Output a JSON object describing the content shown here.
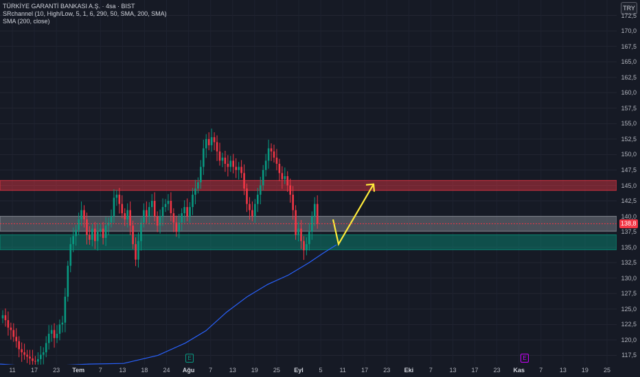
{
  "header": {
    "symbol_line": "TÜRKİYE GARANTİ BANKASI A.Ş. · 4sa · BIST",
    "indicator_1": "SRchannel (10, High/Low, 5, 1, 6, 290, 50, SMA, 200, SMA)",
    "indicator_2": "SMA (200, close)",
    "currency": "TRY",
    "last_price": "138,8"
  },
  "markers": [
    {
      "label": "E",
      "color": "#089981"
    },
    {
      "label": "E",
      "color": "#cc00ff"
    }
  ],
  "colors": {
    "up": "#089981",
    "down": "#f23645",
    "sma": "#2962ff",
    "resistance_zone": "#f23645",
    "support_zone": "#089981",
    "mid_zone": "#9598a1",
    "arrow": "#ffeb3b",
    "background": "#161a25"
  },
  "chart_data": {
    "type": "candlestick",
    "ylim": [
      116,
      175
    ],
    "y_ticks": [
      "117,5",
      "120,0",
      "122,5",
      "125,0",
      "127,5",
      "130,0",
      "132,5",
      "135,0",
      "137,5",
      "140,0",
      "142,5",
      "145,0",
      "147,5",
      "150,0",
      "152,5",
      "155,0",
      "157,5",
      "160,0",
      "162,5",
      "165,0",
      "167,5",
      "170,0",
      "172,5"
    ],
    "x_ticks": [
      "11",
      "17",
      "23",
      "Tem",
      "7",
      "13",
      "18",
      "24",
      "Ağu",
      "7",
      "13",
      "19",
      "25",
      "Eyl",
      "5",
      "11",
      "17",
      "23",
      "Eki",
      "7",
      "13",
      "17",
      "23",
      "Kas",
      "7",
      "13",
      "19",
      "25"
    ],
    "x_major": [
      "Tem",
      "Ağu",
      "Eyl",
      "Eki",
      "Kas"
    ],
    "closes": [
      124.0,
      123.2,
      122.0,
      121.6,
      120.5,
      119.8,
      118.5,
      118.0,
      117.6,
      117.3,
      117.0,
      116.6,
      116.5,
      116.9,
      117.6,
      118.0,
      119.5,
      121.0,
      121.6,
      120.3,
      121.0,
      122.5,
      122.8,
      127.0,
      132.0,
      135.5,
      136.8,
      137.8,
      139.5,
      141.0,
      139.5,
      137.0,
      136.2,
      138.0,
      136.0,
      137.5,
      138.0,
      136.5,
      138.5,
      139.0,
      140.0,
      143.0,
      143.5,
      142.0,
      140.5,
      139.5,
      141.0,
      138.5,
      135.5,
      133.0,
      136.0,
      139.0,
      141.0,
      140.0,
      141.5,
      142.5,
      140.0,
      138.5,
      140.0,
      141.5,
      142.0,
      142.5,
      140.5,
      139.0,
      137.5,
      139.0,
      140.5,
      141.5,
      140.0,
      141.5,
      143.5,
      144.5,
      145.5,
      148.0,
      151.0,
      152.5,
      151.5,
      152.8,
      152.0,
      150.5,
      149.0,
      149.5,
      148.5,
      148.0,
      149.0,
      148.0,
      147.5,
      148.0,
      147.0,
      144.5,
      142.0,
      141.0,
      140.0,
      142.0,
      143.5,
      145.0,
      147.5,
      149.0,
      151.0,
      150.5,
      149.5,
      148.5,
      147.0,
      146.0,
      146.5,
      145.0,
      143.5,
      141.0,
      137.0,
      138.0,
      136.0,
      134.5,
      135.5,
      137.5,
      140.0,
      142.0,
      138.8
    ],
    "sma_200": [
      [
        0,
        116.1
      ],
      [
        40,
        115.8
      ],
      [
        90,
        115.9
      ],
      [
        130,
        116.1
      ],
      [
        180,
        116.2
      ],
      [
        230,
        117.5
      ],
      [
        270,
        119.5
      ],
      [
        300,
        121.5
      ],
      [
        330,
        124.5
      ],
      [
        360,
        127.0
      ],
      [
        390,
        129.0
      ],
      [
        420,
        130.5
      ],
      [
        450,
        132.5
      ],
      [
        470,
        134.0
      ],
      [
        490,
        135.4
      ]
    ],
    "zones": [
      {
        "name": "resistance",
        "low": 144.2,
        "high": 145.8
      },
      {
        "name": "mid",
        "low": 137.6,
        "high": 140.0
      },
      {
        "name": "support",
        "low": 134.6,
        "high": 137.0
      }
    ],
    "projection": [
      [
        135.8,
        139.5
      ],
      [
        135.5,
        145.2
      ]
    ],
    "last_price": 138.8
  }
}
